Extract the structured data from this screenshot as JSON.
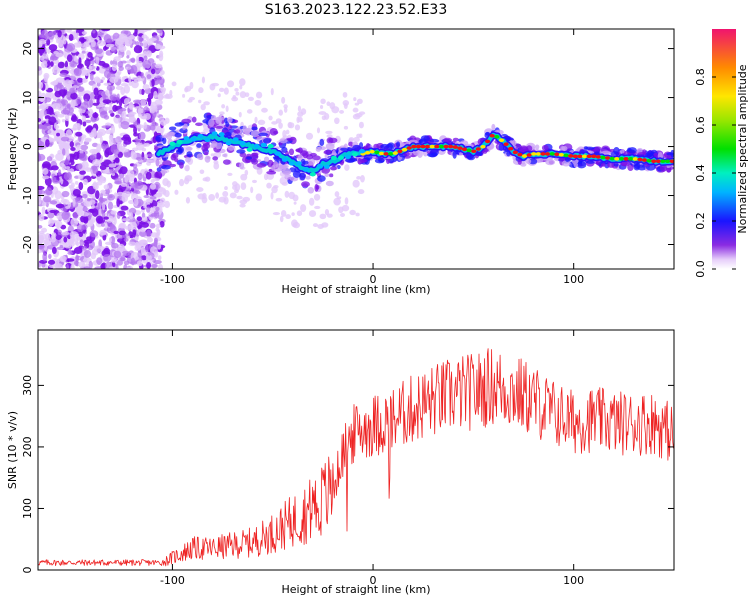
{
  "title": "S163.2023.122.23.52.E33",
  "chart_data": [
    {
      "type": "heatmap",
      "title": "S163.2023.122.23.52.E33",
      "xlabel": "Height of straight line (km)",
      "ylabel": "Frequency (Hz)",
      "xlim": [
        -167,
        150
      ],
      "ylim": [
        -25,
        24
      ],
      "xticks": [
        -100,
        0,
        100
      ],
      "yticks": [
        -20,
        -10,
        0,
        10,
        20
      ],
      "colorbar": {
        "label": "Normalized spectral amplitude",
        "range": [
          0,
          1
        ],
        "ticks": [
          "0.0",
          "0.2",
          "0.4",
          "0.6",
          "0.8"
        ]
      },
      "ridge": {
        "x": [
          -107,
          -100,
          -90,
          -80,
          -70,
          -60,
          -50,
          -40,
          -35,
          -30,
          -25,
          -20,
          -15,
          -10,
          -5,
          0,
          5,
          10,
          20,
          30,
          40,
          50,
          55,
          60,
          65,
          70,
          75,
          80,
          90,
          100,
          110,
          120,
          130,
          140,
          150
        ],
        "y": [
          -1.5,
          0,
          1.5,
          2,
          1,
          0,
          -1,
          -3,
          -4.5,
          -5,
          -3.5,
          -3,
          -2,
          -1,
          -1.5,
          -1,
          -1.5,
          -1.5,
          0,
          0,
          0,
          -1,
          0,
          2.5,
          1,
          -1,
          -2,
          -1.5,
          -1.5,
          -2,
          -2,
          -2.5,
          -2.5,
          -3,
          -3
        ]
      }
    },
    {
      "type": "line",
      "xlabel": "Height of straight line (km)",
      "ylabel": "SNR (10 * v/v)",
      "xlim": [
        -167,
        150
      ],
      "ylim": [
        0,
        390
      ],
      "xticks": [
        -100,
        0,
        100
      ],
      "yticks": [
        0,
        100,
        200,
        300
      ],
      "series": [
        {
          "name": "SNR",
          "color": "#ee2222",
          "envelope_x": [
            -167,
            -105,
            -100,
            -90,
            -80,
            -70,
            -60,
            -50,
            -40,
            -30,
            -20,
            -15,
            -10,
            -5,
            0,
            10,
            20,
            30,
            40,
            50,
            60,
            70,
            80,
            90,
            100,
            110,
            120,
            130,
            140,
            150
          ],
          "envelope_y": [
            12,
            12,
            20,
            35,
            35,
            40,
            45,
            60,
            80,
            100,
            130,
            190,
            220,
            230,
            235,
            245,
            262,
            275,
            285,
            290,
            300,
            290,
            275,
            255,
            240,
            245,
            240,
            238,
            240,
            220
          ]
        }
      ]
    }
  ],
  "colors": {
    "line": "#ee2222",
    "frame": "#000000"
  }
}
